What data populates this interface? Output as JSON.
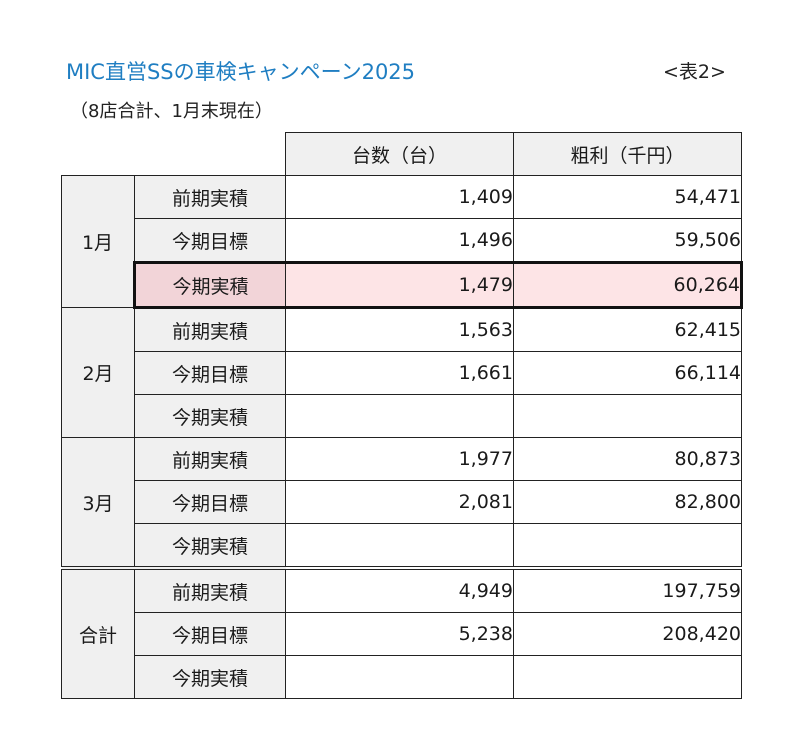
{
  "title": "MIC直営SSの車検キャンペーン2025",
  "tag": "<表2>",
  "subtitle": "（8店合計、1月末現在）",
  "columns": [
    "台数（台）",
    "粗利（千円）"
  ],
  "groups": [
    {
      "label": "1月",
      "rows": [
        {
          "label": "前期実積",
          "units": "1,409",
          "profit": "54,471"
        },
        {
          "label": "今期目標",
          "units": "1,496",
          "profit": "59,506"
        },
        {
          "label": "今期実積",
          "units": "1,479",
          "profit": "60,264"
        }
      ]
    },
    {
      "label": "2月",
      "rows": [
        {
          "label": "前期実積",
          "units": "1,563",
          "profit": "62,415"
        },
        {
          "label": "今期目標",
          "units": "1,661",
          "profit": "66,114"
        },
        {
          "label": "今期実積",
          "units": "",
          "profit": ""
        }
      ]
    },
    {
      "label": "3月",
      "rows": [
        {
          "label": "前期実積",
          "units": "1,977",
          "profit": "80,873"
        },
        {
          "label": "今期目標",
          "units": "2,081",
          "profit": "82,800"
        },
        {
          "label": "今期実積",
          "units": "",
          "profit": ""
        }
      ]
    },
    {
      "label": "合計",
      "rows": [
        {
          "label": "前期実積",
          "units": "4,949",
          "profit": "197,759"
        },
        {
          "label": "今期目標",
          "units": "5,238",
          "profit": "208,420"
        },
        {
          "label": "今期実積",
          "units": "",
          "profit": ""
        }
      ]
    }
  ]
}
